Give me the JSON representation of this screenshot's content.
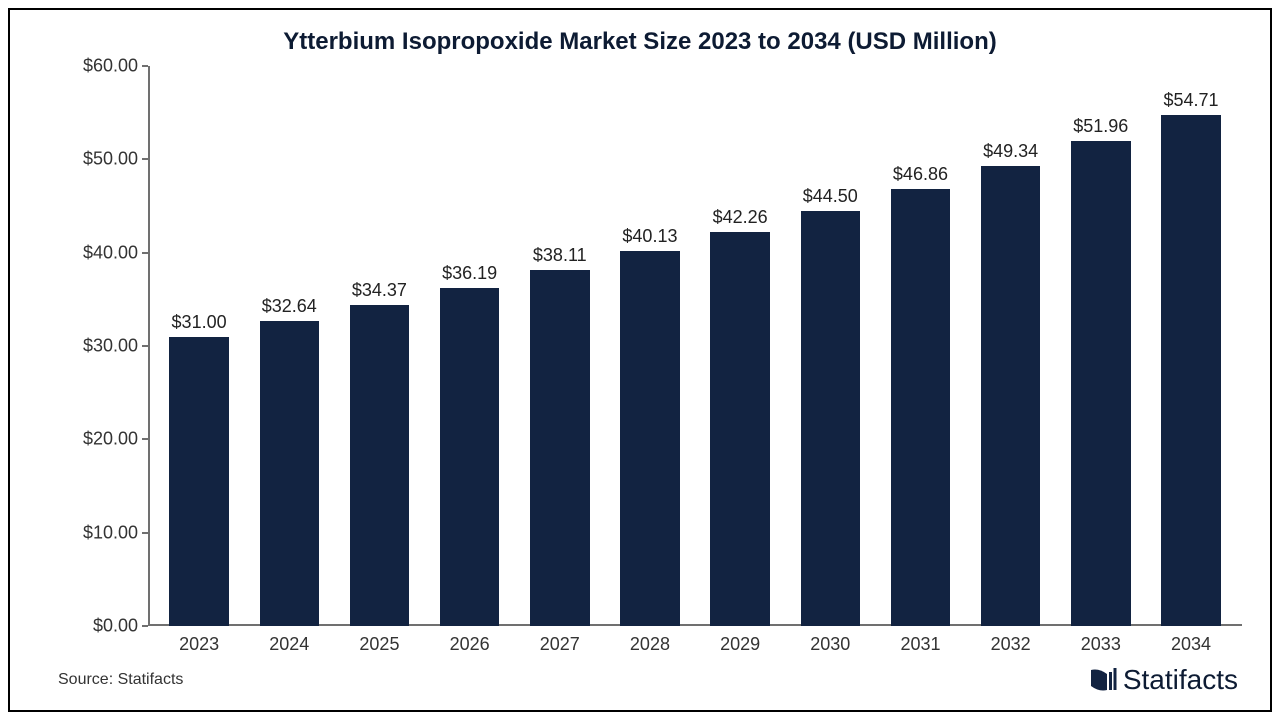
{
  "chart": {
    "type": "bar",
    "title": "Ytterbium Isopropoxide Market Size 2023 to 2034 (USD Million)",
    "title_fontsize": 24,
    "title_color": "#0d1b33",
    "background_color": "#ffffff",
    "border_color": "#000000",
    "axis_color": "#707070",
    "label_color": "#333333",
    "label_fontsize": 18,
    "bar_color": "#122341",
    "bar_width_ratio": 0.66,
    "ylim": [
      0,
      60
    ],
    "ytick_step": 10,
    "yticks": [
      "$0.00",
      "$10.00",
      "$20.00",
      "$30.00",
      "$40.00",
      "$50.00",
      "$60.00"
    ],
    "categories": [
      "2023",
      "2024",
      "2025",
      "2026",
      "2027",
      "2028",
      "2029",
      "2030",
      "2031",
      "2032",
      "2033",
      "2034"
    ],
    "values": [
      31.0,
      32.64,
      34.37,
      36.19,
      38.11,
      40.13,
      42.26,
      44.5,
      46.86,
      49.34,
      51.96,
      54.71
    ],
    "value_labels": [
      "$31.00",
      "$32.64",
      "$34.37",
      "$36.19",
      "$38.11",
      "$40.13",
      "$42.26",
      "$44.50",
      "$46.86",
      "$49.34",
      "$51.96",
      "$54.71"
    ]
  },
  "source": "Source: Statifacts",
  "brand": {
    "name": "Statifacts",
    "icon_color": "#122341",
    "text_color": "#0d1b33"
  }
}
